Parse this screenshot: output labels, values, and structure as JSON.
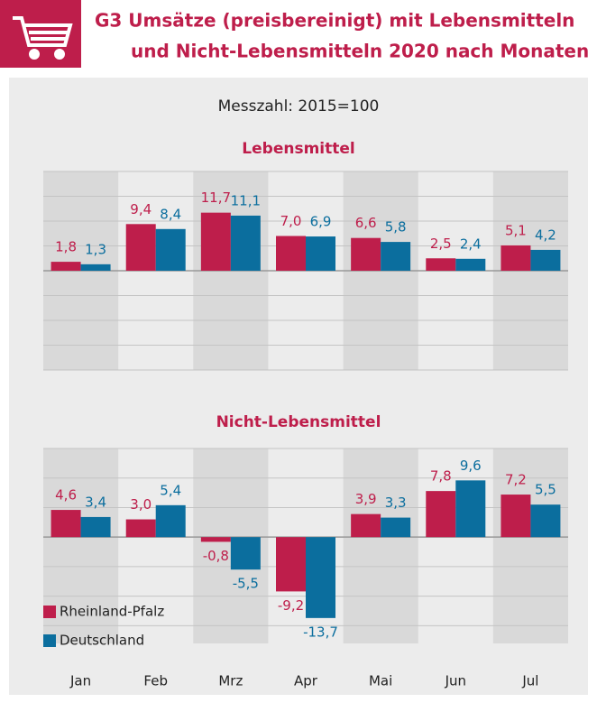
{
  "header": {
    "title": [
      "G3  Umsätze (preisbereinigt) mit Lebensmitteln",
      "und Nicht-Lebensmitteln 2020 nach Monaten"
    ],
    "subtitle": "Messzahl: 2015=100"
  },
  "chart_data": [
    {
      "type": "bar",
      "title": "Lebensmittel",
      "series": [
        {
          "color": "#be1e4b",
          "values": [
            1.8,
            9.4,
            11.7,
            7.0,
            6.6,
            2.5,
            5.1
          ],
          "value_labels": [
            "1,8",
            "9,4",
            "11,7",
            "7,0",
            "6,6",
            "2,5",
            "5,1"
          ]
        },
        {
          "color": "#0b6e9e",
          "values": [
            1.3,
            8.4,
            11.1,
            6.9,
            5.8,
            2.4,
            4.2
          ],
          "value_labels": [
            "1,3",
            "8,4",
            "11,1",
            "6,9",
            "5,8",
            "2,4",
            "4,2"
          ]
        }
      ],
      "ylim": [
        -20,
        20
      ],
      "yticks": [
        -20,
        -15,
        -10,
        -5,
        0,
        5,
        10,
        15,
        20
      ],
      "grid": true
    },
    {
      "type": "bar",
      "title": "Nicht-Lebensmittel",
      "categories": [
        "Jan",
        "Feb",
        "Mrz",
        "Apr",
        "Mai",
        "Jun",
        "Jul"
      ],
      "series": [
        {
          "name": "Rheinland-Pfalz",
          "color": "#be1e4b",
          "values": [
            4.6,
            3.0,
            -0.8,
            -9.2,
            3.9,
            7.8,
            7.2
          ],
          "value_labels": [
            "4,6",
            "3,0",
            "-0,8",
            "-9,2",
            "3,9",
            "7,8",
            "7,2"
          ]
        },
        {
          "name": "Deutschland",
          "color": "#0b6e9e",
          "values": [
            3.4,
            5.4,
            -5.5,
            -13.7,
            3.3,
            9.6,
            5.5
          ],
          "value_labels": [
            "3,4",
            "5,4",
            "-5,5",
            "-13,7",
            "3,3",
            "9,6",
            "5,5"
          ]
        }
      ],
      "ylim": [
        -18,
        15
      ],
      "yticks": [
        -15,
        -10,
        -5,
        0,
        5,
        10,
        15
      ],
      "grid": true,
      "legend": "lower left"
    }
  ]
}
